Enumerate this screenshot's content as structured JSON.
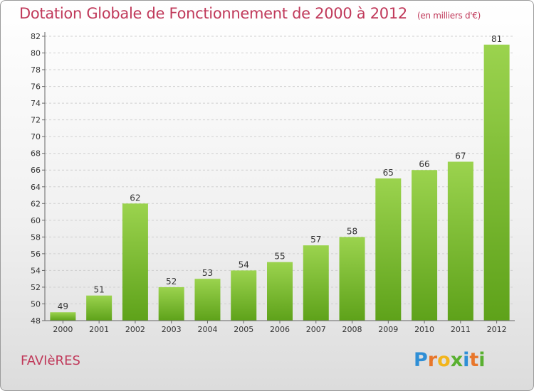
{
  "header": {
    "title": "Dotation Globale de Fonctionnement de 2000 à 2012",
    "unit": "(en milliers d'€)"
  },
  "footer": {
    "commune": "FAVIèRES",
    "logo_letters": [
      "P",
      "r",
      "o",
      "x",
      "i",
      "t",
      "i"
    ],
    "logo_colors": [
      "#2f8fd6",
      "#e8762a",
      "#f2b51c",
      "#59b030",
      "#2f8fd6",
      "#e8762a",
      "#59b030"
    ]
  },
  "chart_data": {
    "type": "bar",
    "categories": [
      "2000",
      "2001",
      "2002",
      "2003",
      "2004",
      "2005",
      "2006",
      "2007",
      "2008",
      "2009",
      "2010",
      "2011",
      "2012"
    ],
    "values": [
      49,
      51,
      62,
      52,
      53,
      54,
      55,
      57,
      58,
      65,
      66,
      67,
      81
    ],
    "data_labels": [
      "49",
      "51",
      "62",
      "52",
      "53",
      "54",
      "55",
      "57",
      "58",
      "65",
      "66",
      "67",
      "81"
    ],
    "title": "Dotation Globale de Fonctionnement de 2000 à 2012",
    "xlabel": "",
    "ylabel": "",
    "ylim": [
      48,
      82
    ],
    "yticks": [
      48,
      50,
      52,
      54,
      56,
      58,
      60,
      62,
      64,
      66,
      68,
      70,
      72,
      74,
      76,
      78,
      80,
      82
    ],
    "grid": true,
    "bar_color": "#7cbc2e"
  }
}
